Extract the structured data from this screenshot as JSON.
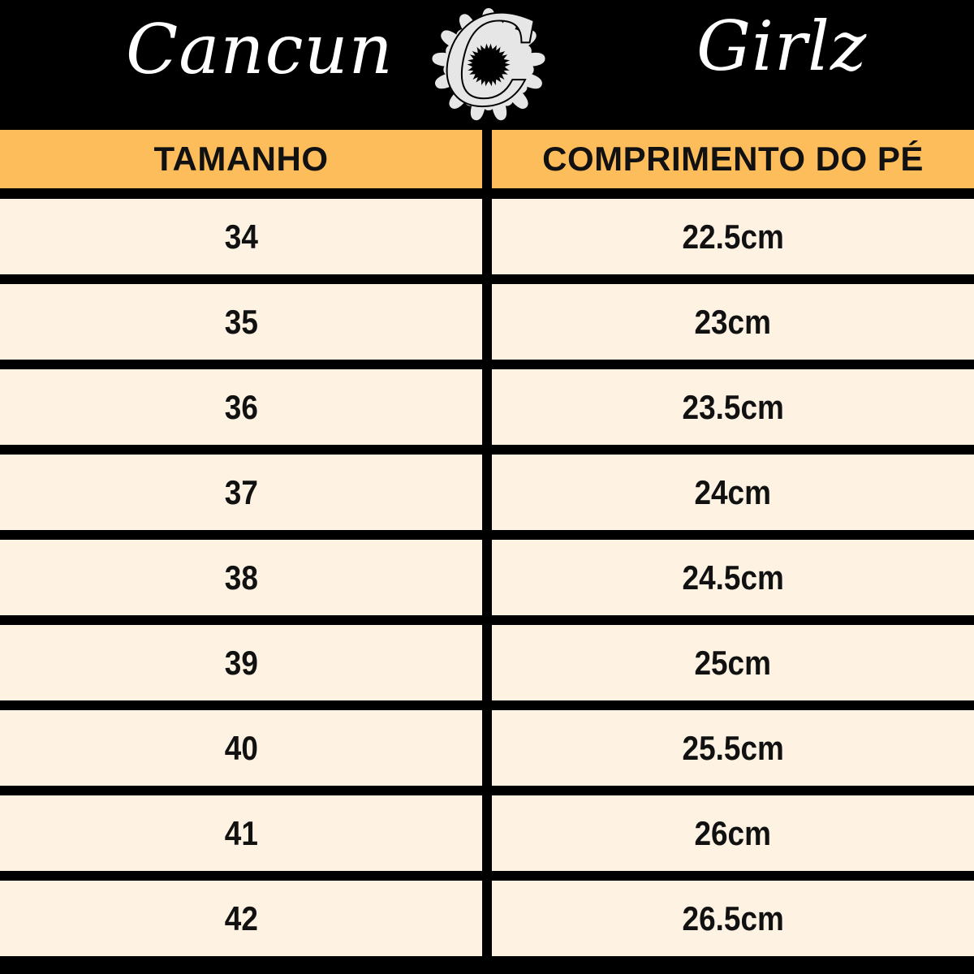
{
  "brand": {
    "left_word": "Cancun",
    "right_word": "Girlz",
    "logo_letter": "C"
  },
  "colors": {
    "header_bg": "#000000",
    "column_header_bg": "#FDBD5A",
    "row_bg": "#FEF3E3",
    "divider": "#000000"
  },
  "table": {
    "headers": [
      "TAMANHO",
      "COMPRIMENTO DO PÉ"
    ],
    "rows": [
      {
        "size": "34",
        "length": "22.5cm"
      },
      {
        "size": "35",
        "length": "23cm"
      },
      {
        "size": "36",
        "length": "23.5cm"
      },
      {
        "size": "37",
        "length": "24cm"
      },
      {
        "size": "38",
        "length": "24.5cm"
      },
      {
        "size": "39",
        "length": "25cm"
      },
      {
        "size": "40",
        "length": "25.5cm"
      },
      {
        "size": "41",
        "length": "26cm"
      },
      {
        "size": "42",
        "length": "26.5cm"
      }
    ]
  }
}
